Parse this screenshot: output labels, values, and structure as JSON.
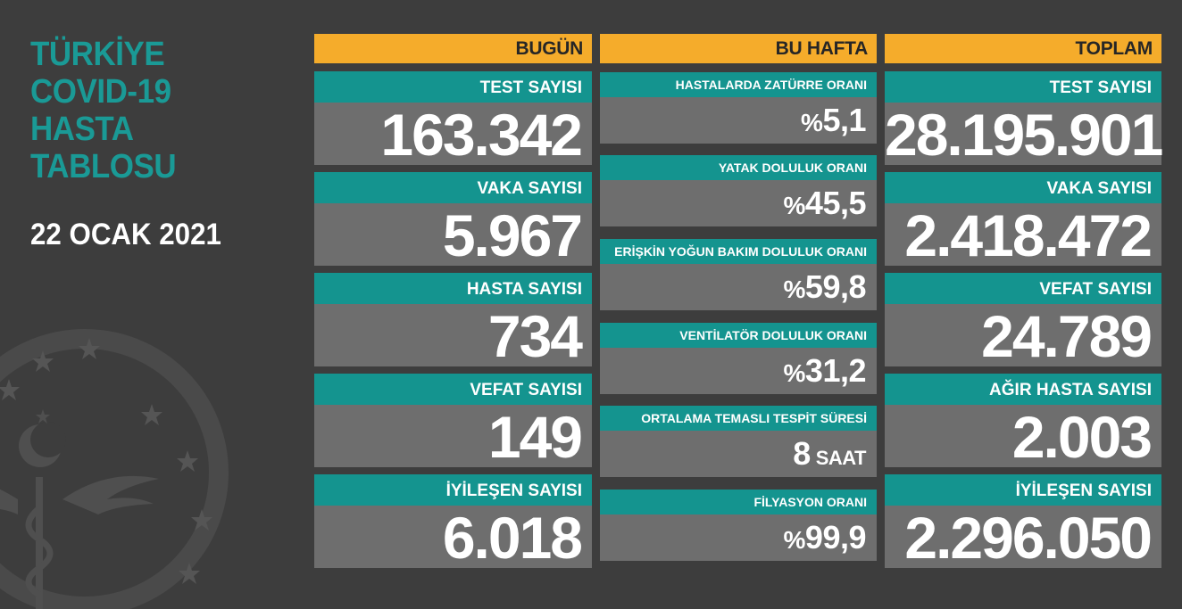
{
  "header": {
    "title_lines": [
      "TÜRKİYE",
      "COVID-19",
      "HASTA",
      "TABLOSU"
    ],
    "date": "22 OCAK 2021"
  },
  "today": {
    "heading": "BUGÜN",
    "cards": [
      {
        "label": "TEST SAYISI",
        "value": "163.342"
      },
      {
        "label": "VAKA SAYISI",
        "value": "5.967"
      },
      {
        "label": "HASTA SAYISI",
        "value": "734"
      },
      {
        "label": "VEFAT SAYISI",
        "value": "149"
      },
      {
        "label": "İYİLEŞEN SAYISI",
        "value": "6.018"
      }
    ]
  },
  "this_week": {
    "heading": "BU HAFTA",
    "cards": [
      {
        "label": "HASTALARDA ZATÜRRE ORANI",
        "prefix": "%",
        "value": "5,1"
      },
      {
        "label": "YATAK DOLULUK ORANI",
        "prefix": "%",
        "value": "45,5"
      },
      {
        "label": "ERİŞKİN YOĞUN BAKIM DOLULUK ORANI",
        "prefix": "%",
        "value": "59,8"
      },
      {
        "label": "VENTİLATÖR DOLULUK ORANI",
        "prefix": "%",
        "value": "31,2"
      },
      {
        "label": "ORTALAMA TEMASLI TESPİT SÜRESİ",
        "value": "8",
        "unit": "SAAT"
      },
      {
        "label": "FİLYASYON ORANI",
        "prefix": "%",
        "value": "99,9"
      }
    ]
  },
  "total": {
    "heading": "TOPLAM",
    "cards": [
      {
        "label": "TEST SAYISI",
        "value": "28.195.901"
      },
      {
        "label": "VAKA SAYISI",
        "value": "2.418.472"
      },
      {
        "label": "VEFAT SAYISI",
        "value": "24.789"
      },
      {
        "label": "AĞIR HASTA SAYISI",
        "value": "2.003"
      },
      {
        "label": "İYİLEŞEN SAYISI",
        "value": "2.296.050"
      }
    ]
  },
  "colors": {
    "background": "#3d3d3d",
    "heading_bg": "#f5ac2b",
    "label_bg": "#14948f",
    "value_bg": "#6e6e6e",
    "title_text": "#1a9a96"
  },
  "icons": {
    "emblem": "ministry-of-health-emblem-watermark"
  }
}
